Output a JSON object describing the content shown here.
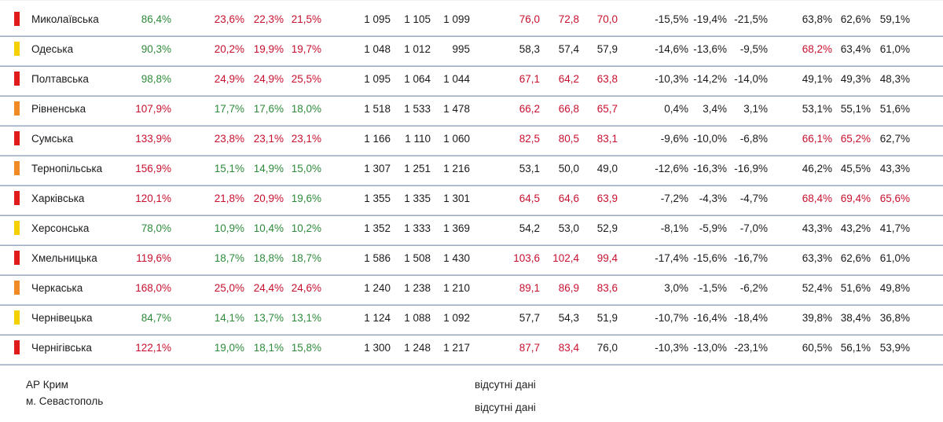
{
  "colors": {
    "red_marker": "#e01b1b",
    "yellow_marker": "#f5d000",
    "orange_marker": "#f08a24",
    "green_text": "#2e8b3a",
    "red_text": "#c8102e"
  },
  "rows": [
    {
      "marker": "red",
      "name": "Миколаївська",
      "c1": {
        "v": "86,4%",
        "c": "green"
      },
      "g1": [
        {
          "v": "23,6%",
          "c": "red"
        },
        {
          "v": "22,3%",
          "c": "red"
        },
        {
          "v": "21,5%",
          "c": "red"
        }
      ],
      "g2": [
        "1 095",
        "1 105",
        "1 099"
      ],
      "g3": [
        {
          "v": "76,0",
          "c": "red"
        },
        {
          "v": "72,8",
          "c": "red"
        },
        {
          "v": "70,0",
          "c": "red"
        }
      ],
      "g4": [
        "-15,5%",
        "-19,4%",
        "-21,5%"
      ],
      "g5": [
        {
          "v": "63,8%",
          "c": "dark"
        },
        {
          "v": "62,6%",
          "c": "dark"
        },
        {
          "v": "59,1%",
          "c": "dark"
        }
      ]
    },
    {
      "marker": "yellow",
      "name": "Одеська",
      "c1": {
        "v": "90,3%",
        "c": "green"
      },
      "g1": [
        {
          "v": "20,2%",
          "c": "red"
        },
        {
          "v": "19,9%",
          "c": "red"
        },
        {
          "v": "19,7%",
          "c": "red"
        }
      ],
      "g2": [
        "1 048",
        "1 012",
        "995"
      ],
      "g3": [
        {
          "v": "58,3",
          "c": "dark"
        },
        {
          "v": "57,4",
          "c": "dark"
        },
        {
          "v": "57,9",
          "c": "dark"
        }
      ],
      "g4": [
        "-14,6%",
        "-13,6%",
        "-9,5%"
      ],
      "g5": [
        {
          "v": "68,2%",
          "c": "red"
        },
        {
          "v": "63,4%",
          "c": "dark"
        },
        {
          "v": "61,0%",
          "c": "dark"
        }
      ]
    },
    {
      "marker": "red",
      "name": "Полтавська",
      "c1": {
        "v": "98,8%",
        "c": "green"
      },
      "g1": [
        {
          "v": "24,9%",
          "c": "red"
        },
        {
          "v": "24,9%",
          "c": "red"
        },
        {
          "v": "25,5%",
          "c": "red"
        }
      ],
      "g2": [
        "1 095",
        "1 064",
        "1 044"
      ],
      "g3": [
        {
          "v": "67,1",
          "c": "red"
        },
        {
          "v": "64,2",
          "c": "red"
        },
        {
          "v": "63,8",
          "c": "red"
        }
      ],
      "g4": [
        "-10,3%",
        "-14,2%",
        "-14,0%"
      ],
      "g5": [
        {
          "v": "49,1%",
          "c": "dark"
        },
        {
          "v": "49,3%",
          "c": "dark"
        },
        {
          "v": "48,3%",
          "c": "dark"
        }
      ]
    },
    {
      "marker": "orange",
      "name": "Рівненська",
      "c1": {
        "v": "107,9%",
        "c": "red"
      },
      "g1": [
        {
          "v": "17,7%",
          "c": "green"
        },
        {
          "v": "17,6%",
          "c": "green"
        },
        {
          "v": "18,0%",
          "c": "green"
        }
      ],
      "g2": [
        "1 518",
        "1 533",
        "1 478"
      ],
      "g3": [
        {
          "v": "66,2",
          "c": "red"
        },
        {
          "v": "66,8",
          "c": "red"
        },
        {
          "v": "65,7",
          "c": "red"
        }
      ],
      "g4": [
        "0,4%",
        "3,4%",
        "3,1%"
      ],
      "g5": [
        {
          "v": "53,1%",
          "c": "dark"
        },
        {
          "v": "55,1%",
          "c": "dark"
        },
        {
          "v": "51,6%",
          "c": "dark"
        }
      ]
    },
    {
      "marker": "red",
      "name": "Сумська",
      "c1": {
        "v": "133,9%",
        "c": "red"
      },
      "g1": [
        {
          "v": "23,8%",
          "c": "red"
        },
        {
          "v": "23,1%",
          "c": "red"
        },
        {
          "v": "23,1%",
          "c": "red"
        }
      ],
      "g2": [
        "1 166",
        "1 110",
        "1 060"
      ],
      "g3": [
        {
          "v": "82,5",
          "c": "red"
        },
        {
          "v": "80,5",
          "c": "red"
        },
        {
          "v": "83,1",
          "c": "red"
        }
      ],
      "g4": [
        "-9,6%",
        "-10,0%",
        "-6,8%"
      ],
      "g5": [
        {
          "v": "66,1%",
          "c": "red"
        },
        {
          "v": "65,2%",
          "c": "red"
        },
        {
          "v": "62,7%",
          "c": "dark"
        }
      ]
    },
    {
      "marker": "orange",
      "name": "Тернопільська",
      "c1": {
        "v": "156,9%",
        "c": "red"
      },
      "g1": [
        {
          "v": "15,1%",
          "c": "green"
        },
        {
          "v": "14,9%",
          "c": "green"
        },
        {
          "v": "15,0%",
          "c": "green"
        }
      ],
      "g2": [
        "1 307",
        "1 251",
        "1 216"
      ],
      "g3": [
        {
          "v": "53,1",
          "c": "dark"
        },
        {
          "v": "50,0",
          "c": "dark"
        },
        {
          "v": "49,0",
          "c": "dark"
        }
      ],
      "g4": [
        "-12,6%",
        "-16,3%",
        "-16,9%"
      ],
      "g5": [
        {
          "v": "46,2%",
          "c": "dark"
        },
        {
          "v": "45,5%",
          "c": "dark"
        },
        {
          "v": "43,3%",
          "c": "dark"
        }
      ]
    },
    {
      "marker": "red",
      "name": "Харківська",
      "c1": {
        "v": "120,1%",
        "c": "red"
      },
      "g1": [
        {
          "v": "21,8%",
          "c": "red"
        },
        {
          "v": "20,9%",
          "c": "red"
        },
        {
          "v": "19,6%",
          "c": "green"
        }
      ],
      "g2": [
        "1 355",
        "1 335",
        "1 301"
      ],
      "g3": [
        {
          "v": "64,5",
          "c": "red"
        },
        {
          "v": "64,6",
          "c": "red"
        },
        {
          "v": "63,9",
          "c": "red"
        }
      ],
      "g4": [
        "-7,2%",
        "-4,3%",
        "-4,7%"
      ],
      "g5": [
        {
          "v": "68,4%",
          "c": "red"
        },
        {
          "v": "69,4%",
          "c": "red"
        },
        {
          "v": "65,6%",
          "c": "red"
        }
      ]
    },
    {
      "marker": "yellow",
      "name": "Херсонська",
      "c1": {
        "v": "78,0%",
        "c": "green"
      },
      "g1": [
        {
          "v": "10,9%",
          "c": "green"
        },
        {
          "v": "10,4%",
          "c": "green"
        },
        {
          "v": "10,2%",
          "c": "green"
        }
      ],
      "g2": [
        "1 352",
        "1 333",
        "1 369"
      ],
      "g3": [
        {
          "v": "54,2",
          "c": "dark"
        },
        {
          "v": "53,0",
          "c": "dark"
        },
        {
          "v": "52,9",
          "c": "dark"
        }
      ],
      "g4": [
        "-8,1%",
        "-5,9%",
        "-7,0%"
      ],
      "g5": [
        {
          "v": "43,3%",
          "c": "dark"
        },
        {
          "v": "43,2%",
          "c": "dark"
        },
        {
          "v": "41,7%",
          "c": "dark"
        }
      ]
    },
    {
      "marker": "red",
      "name": "Хмельницька",
      "c1": {
        "v": "119,6%",
        "c": "red"
      },
      "g1": [
        {
          "v": "18,7%",
          "c": "green"
        },
        {
          "v": "18,8%",
          "c": "green"
        },
        {
          "v": "18,7%",
          "c": "green"
        }
      ],
      "g2": [
        "1 586",
        "1 508",
        "1 430"
      ],
      "g3": [
        {
          "v": "103,6",
          "c": "red"
        },
        {
          "v": "102,4",
          "c": "red"
        },
        {
          "v": "99,4",
          "c": "red"
        }
      ],
      "g4": [
        "-17,4%",
        "-15,6%",
        "-16,7%"
      ],
      "g5": [
        {
          "v": "63,3%",
          "c": "dark"
        },
        {
          "v": "62,6%",
          "c": "dark"
        },
        {
          "v": "61,0%",
          "c": "dark"
        }
      ]
    },
    {
      "marker": "orange",
      "name": "Черкаська",
      "c1": {
        "v": "168,0%",
        "c": "red"
      },
      "g1": [
        {
          "v": "25,0%",
          "c": "red"
        },
        {
          "v": "24,4%",
          "c": "red"
        },
        {
          "v": "24,6%",
          "c": "red"
        }
      ],
      "g2": [
        "1 240",
        "1 238",
        "1 210"
      ],
      "g3": [
        {
          "v": "89,1",
          "c": "red"
        },
        {
          "v": "86,9",
          "c": "red"
        },
        {
          "v": "83,6",
          "c": "red"
        }
      ],
      "g4": [
        "3,0%",
        "-1,5%",
        "-6,2%"
      ],
      "g5": [
        {
          "v": "52,4%",
          "c": "dark"
        },
        {
          "v": "51,6%",
          "c": "dark"
        },
        {
          "v": "49,8%",
          "c": "dark"
        }
      ]
    },
    {
      "marker": "yellow",
      "name": "Чернівецька",
      "c1": {
        "v": "84,7%",
        "c": "green"
      },
      "g1": [
        {
          "v": "14,1%",
          "c": "green"
        },
        {
          "v": "13,7%",
          "c": "green"
        },
        {
          "v": "13,1%",
          "c": "green"
        }
      ],
      "g2": [
        "1 124",
        "1 088",
        "1 092"
      ],
      "g3": [
        {
          "v": "57,7",
          "c": "dark"
        },
        {
          "v": "54,3",
          "c": "dark"
        },
        {
          "v": "51,9",
          "c": "dark"
        }
      ],
      "g4": [
        "-10,7%",
        "-16,4%",
        "-18,4%"
      ],
      "g5": [
        {
          "v": "39,8%",
          "c": "dark"
        },
        {
          "v": "38,4%",
          "c": "dark"
        },
        {
          "v": "36,8%",
          "c": "dark"
        }
      ]
    },
    {
      "marker": "red",
      "name": "Чернігівська",
      "c1": {
        "v": "122,1%",
        "c": "red"
      },
      "g1": [
        {
          "v": "19,0%",
          "c": "green"
        },
        {
          "v": "18,1%",
          "c": "green"
        },
        {
          "v": "15,8%",
          "c": "green"
        }
      ],
      "g2": [
        "1 300",
        "1 248",
        "1 217"
      ],
      "g3": [
        {
          "v": "87,7",
          "c": "red"
        },
        {
          "v": "83,4",
          "c": "red"
        },
        {
          "v": "76,0",
          "c": "dark"
        }
      ],
      "g4": [
        "-10,3%",
        "-13,0%",
        "-23,1%"
      ],
      "g5": [
        {
          "v": "60,5%",
          "c": "dark"
        },
        {
          "v": "56,1%",
          "c": "dark"
        },
        {
          "v": "53,9%",
          "c": "dark"
        }
      ]
    }
  ],
  "footer": {
    "crimea_label": "АР Крим",
    "sevastopol_label": "м. Севастополь",
    "crimea_note": "відсутні дані",
    "sevastopol_note": "відсутні дані"
  }
}
